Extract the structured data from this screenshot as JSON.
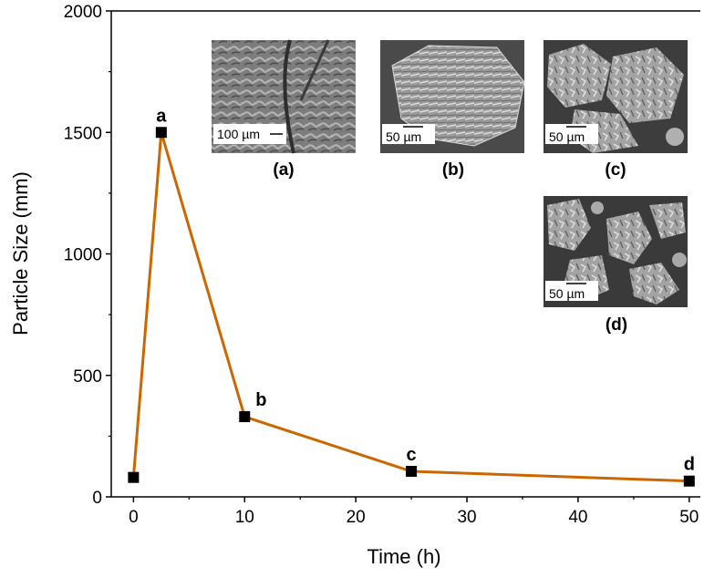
{
  "chart_data": {
    "type": "line",
    "xlabel": "Time (h)",
    "ylabel": "Particle Size (mm)",
    "xlim": [
      -2,
      51
    ],
    "ylim": [
      0,
      2000
    ],
    "x_ticks": [
      0,
      10,
      20,
      30,
      40,
      50
    ],
    "y_ticks": [
      0,
      500,
      1000,
      1500,
      2000
    ],
    "grid": false,
    "series": [
      {
        "color": "#cc6600",
        "marker": "square",
        "points": [
          {
            "x": 0,
            "y": 80,
            "label": ""
          },
          {
            "x": 2.5,
            "y": 1500,
            "label": "a"
          },
          {
            "x": 10,
            "y": 330,
            "label": "b"
          },
          {
            "x": 25,
            "y": 105,
            "label": "c"
          },
          {
            "x": 50,
            "y": 65,
            "label": "d"
          }
        ]
      }
    ],
    "insets": [
      {
        "caption": "(a)",
        "scale_text": "100 µm"
      },
      {
        "caption": "(b)",
        "scale_text": "50 µm"
      },
      {
        "caption": "(c)",
        "scale_text": "50 µm"
      },
      {
        "caption": "(d)",
        "scale_text": "50 µm"
      }
    ]
  },
  "colors": {
    "line": "#cc6600",
    "marker": "#000000",
    "sem_background": "#8a8a8a"
  }
}
